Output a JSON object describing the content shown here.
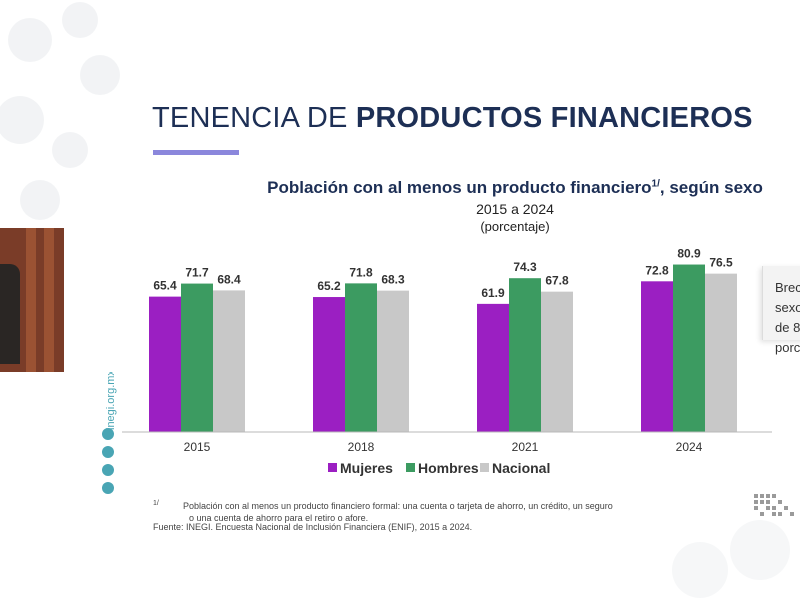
{
  "slide": {
    "title_prefix": "TENENCIA DE ",
    "title_bold": "PRODUCTOS FINANCIEROS",
    "accent_color": "#8b87dc",
    "title_color": "#1d2f55"
  },
  "chart_data": {
    "type": "bar",
    "title": "Población con al menos un producto financiero",
    "title_superscript": "1/",
    "title_suffix": ", según sexo",
    "subtitle": "2015 a 2024",
    "unit_label": "(porcentaje)",
    "categories": [
      "2015",
      "2018",
      "2021",
      "2024"
    ],
    "series": [
      {
        "name": "Mujeres",
        "color": "#9b1fc2",
        "values": [
          65.4,
          65.2,
          61.9,
          72.8
        ]
      },
      {
        "name": "Hombres",
        "color": "#3c9b61",
        "values": [
          71.7,
          71.8,
          74.3,
          80.9
        ]
      },
      {
        "name": "Nacional",
        "color": "#c8c8c8",
        "values": [
          68.4,
          68.3,
          67.8,
          76.5
        ]
      }
    ],
    "ylim": [
      0,
      100
    ],
    "grid": false,
    "legend_placement": "bottom"
  },
  "side_card": {
    "lines": [
      "Brec",
      "sexo",
      "de 8",
      "porc"
    ]
  },
  "sidebar": {
    "url": "inegi.org.mx",
    "icons": [
      "facebook-icon",
      "twitter-icon",
      "instagram-icon",
      "youtube-icon"
    ]
  },
  "footnote": {
    "marker": "1/",
    "line1": "Población con al menos un producto financiero formal: una cuenta o tarjeta de ahorro, un crédito, un seguro",
    "line2": "o una cuenta de ahorro para el retiro o afore."
  },
  "source": "Fuente: INEGI. Encuesta Nacional de Inclusión Financiera (ENIF), 2015 a 2024."
}
